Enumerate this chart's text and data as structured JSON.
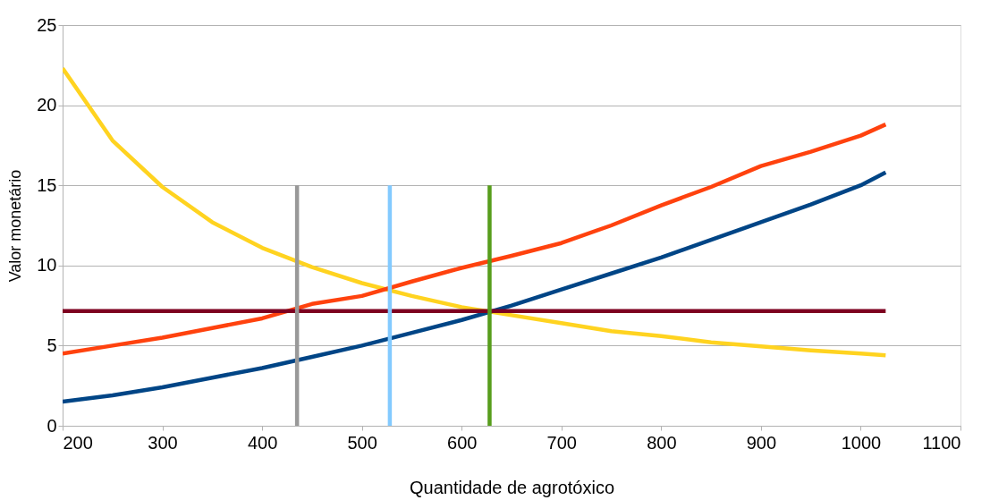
{
  "chart_data": {
    "type": "line",
    "xlabel": "Quantidade de agrotóxico",
    "ylabel": "Valor monetário",
    "xlim": [
      200,
      1100
    ],
    "ylim": [
      0,
      25
    ],
    "xticks": [
      200,
      300,
      400,
      500,
      600,
      700,
      800,
      900,
      1000,
      1100
    ],
    "yticks": [
      0,
      5,
      10,
      15,
      20,
      25
    ],
    "grid": "y",
    "marker": "none",
    "line_style": "solid",
    "series": [
      {
        "color": "#ffd320",
        "x": [
          200,
          250,
          300,
          350,
          400,
          450,
          500,
          550,
          600,
          650,
          700,
          750,
          800,
          850,
          900,
          950,
          1000,
          1025
        ],
        "values": [
          22.3,
          17.8,
          14.9,
          12.7,
          11.1,
          9.9,
          8.9,
          8.1,
          7.4,
          6.9,
          6.4,
          5.9,
          5.6,
          5.2,
          4.95,
          4.7,
          4.5,
          4.4
        ]
      },
      {
        "color": "#ff420e",
        "x": [
          200,
          250,
          300,
          350,
          400,
          450,
          500,
          550,
          600,
          650,
          700,
          750,
          800,
          850,
          900,
          950,
          1000,
          1025
        ],
        "values": [
          4.5,
          5.0,
          5.5,
          6.1,
          6.7,
          7.6,
          8.1,
          9.0,
          9.85,
          10.6,
          11.4,
          12.5,
          13.75,
          14.9,
          16.2,
          17.1,
          18.1,
          18.8
        ]
      },
      {
        "color": "#004586",
        "x": [
          200,
          250,
          300,
          350,
          400,
          450,
          500,
          550,
          600,
          650,
          700,
          750,
          800,
          850,
          900,
          950,
          1000,
          1025
        ],
        "values": [
          1.5,
          1.9,
          2.4,
          3.0,
          3.6,
          4.3,
          5.0,
          5.8,
          6.6,
          7.5,
          8.5,
          9.5,
          10.5,
          11.6,
          12.7,
          13.8,
          15.0,
          15.8
        ]
      },
      {
        "color": "#7e0021",
        "x": [
          200,
          1025
        ],
        "values": [
          7.15,
          7.15
        ]
      },
      {
        "color": "#999999",
        "x": [
          435,
          435
        ],
        "values": [
          0,
          15
        ]
      },
      {
        "color": "#83caff",
        "x": [
          528,
          528
        ],
        "values": [
          0,
          15
        ]
      },
      {
        "color": "#579d1c",
        "x": [
          628,
          628
        ],
        "values": [
          0,
          15
        ]
      }
    ]
  }
}
